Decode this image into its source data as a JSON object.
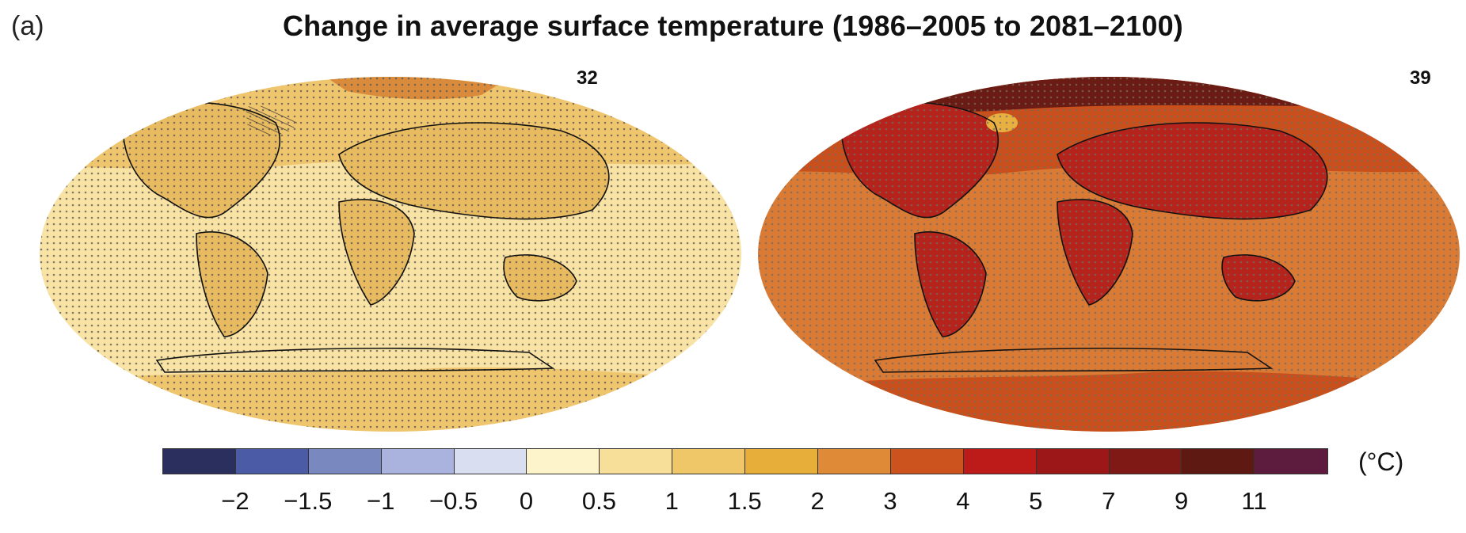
{
  "panel_label": "(a)",
  "title": "Change in average surface temperature (1986–2005 to 2081–2100)",
  "maps": [
    {
      "model_count": "32",
      "base_color": "#f8e2a4",
      "warm_color": "#efc56e",
      "land_color": "#e9bb60",
      "arctic_color": "#d98b3b"
    },
    {
      "model_count": "39",
      "base_color": "#d97a35",
      "warm_color": "#c8501d",
      "land_color": "#b4241d",
      "arctic_color": "#6a1c14"
    }
  ],
  "legend": {
    "unit": "(°C)",
    "colors": [
      "#2b2f5d",
      "#4c5ba6",
      "#7a88c0",
      "#aab3dd",
      "#d9def1",
      "#fdf4cc",
      "#f7df9a",
      "#f0c768",
      "#e7ae3a",
      "#df8a36",
      "#cd531e",
      "#bd1a1a",
      "#9c1718",
      "#7e1915",
      "#5d1912",
      "#5d1b3e"
    ],
    "ticks": [
      "−2",
      "−1.5",
      "−1",
      "−0.5",
      "0",
      "0.5",
      "1",
      "1.5",
      "2",
      "3",
      "4",
      "5",
      "7",
      "9",
      "11"
    ]
  }
}
